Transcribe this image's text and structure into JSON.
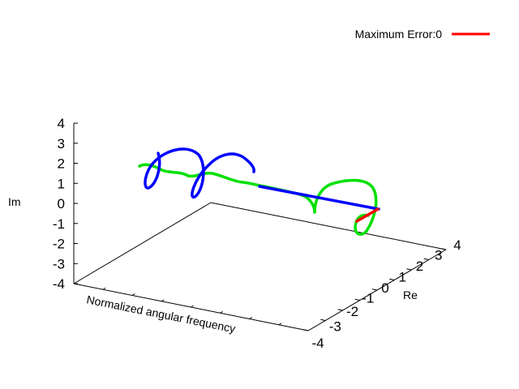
{
  "chart_data": {
    "type": "line3d",
    "title": "",
    "legend": {
      "placement": "top-right",
      "entries": [
        {
          "label": "Maximum Error:0",
          "color": "#ff0000"
        }
      ]
    },
    "axes": {
      "z": {
        "label": "Im",
        "range": [
          -4,
          4
        ],
        "ticks": [
          "-4",
          "-3",
          "-2",
          "-1",
          "0",
          "1",
          "2",
          "3",
          "4"
        ]
      },
      "y": {
        "label": "Re",
        "range": [
          -4,
          4
        ],
        "ticks": [
          "-4",
          "-3",
          "-2",
          "-1",
          "0",
          "1",
          "2",
          "3",
          "4"
        ]
      },
      "x": {
        "label": "Normalized angular frequency",
        "range": [
          0,
          1
        ]
      }
    },
    "grid": false,
    "series": [
      {
        "color": "#0000ff",
        "description": "blue 3D curve"
      },
      {
        "color": "#00e000",
        "description": "green 3D curve"
      },
      {
        "color": "#ff0000",
        "description": "red segment"
      }
    ]
  }
}
